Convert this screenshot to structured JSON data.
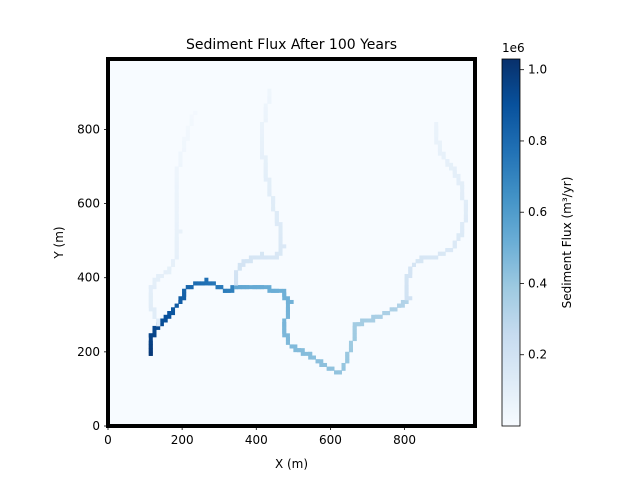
{
  "chart_data": {
    "type": "heatmap",
    "title": "Sediment Flux After 100 Years",
    "xlabel": "X (m)",
    "ylabel": "Y (m)",
    "xlim": [
      0,
      990
    ],
    "ylim": [
      0,
      990
    ],
    "xticks": [
      "0",
      "200",
      "400",
      "600",
      "800"
    ],
    "yticks": [
      "0",
      "200",
      "400",
      "600",
      "800"
    ],
    "colormap": "Blues",
    "colorbar": {
      "label": "Sediment Flux (m³/yr)",
      "offset_text": "1e6",
      "range": [
        0,
        1030000
      ],
      "ticks": [
        "0.2",
        "0.4",
        "0.6",
        "0.8",
        "1.0"
      ],
      "tick_values": [
        0.2,
        0.4,
        0.6,
        0.8,
        1.0
      ]
    },
    "channels": [
      {
        "segment": "main-trunk",
        "points": [
          [
            110,
            190
          ],
          [
            115,
            240
          ],
          [
            135,
            270
          ],
          [
            165,
            300
          ],
          [
            190,
            330
          ],
          [
            205,
            350
          ],
          [
            210,
            370
          ],
          [
            235,
            385
          ],
          [
            260,
            390
          ],
          [
            285,
            380
          ],
          [
            320,
            365
          ],
          [
            345,
            375
          ]
        ],
        "flux_start": 1000000,
        "flux_end": 700000
      },
      {
        "segment": "middle-reach",
        "points": [
          [
            345,
            378
          ],
          [
            390,
            375
          ],
          [
            430,
            370
          ],
          [
            470,
            360
          ],
          [
            490,
            330
          ],
          [
            480,
            290
          ],
          [
            475,
            255
          ],
          [
            490,
            215
          ],
          [
            540,
            195
          ],
          [
            585,
            160
          ],
          [
            625,
            140
          ],
          [
            640,
            170
          ],
          [
            660,
            230
          ],
          [
            665,
            275
          ],
          [
            700,
            285
          ],
          [
            740,
            300
          ],
          [
            780,
            320
          ],
          [
            810,
            340
          ]
        ],
        "flux_start": 550000,
        "flux_end": 320000
      },
      {
        "segment": "east-tributary",
        "points": [
          [
            810,
            340
          ],
          [
            805,
            390
          ],
          [
            820,
            430
          ],
          [
            850,
            455
          ],
          [
            890,
            460
          ],
          [
            930,
            480
          ],
          [
            955,
            520
          ],
          [
            965,
            580
          ],
          [
            955,
            640
          ],
          [
            930,
            690
          ],
          [
            900,
            730
          ],
          [
            885,
            780
          ],
          [
            880,
            820
          ]
        ],
        "flux_start": 200000,
        "flux_end": 60000
      },
      {
        "segment": "north-tributary",
        "points": [
          [
            345,
            380
          ],
          [
            345,
            415
          ],
          [
            370,
            445
          ],
          [
            410,
            460
          ],
          [
            450,
            455
          ],
          [
            470,
            480
          ],
          [
            460,
            540
          ],
          [
            445,
            600
          ],
          [
            430,
            660
          ],
          [
            420,
            720
          ],
          [
            415,
            770
          ],
          [
            420,
            820
          ],
          [
            430,
            870
          ],
          [
            440,
            910
          ]
        ],
        "flux_start": 200000,
        "flux_end": 40000
      },
      {
        "segment": "west-tributary",
        "points": [
          [
            135,
            270
          ],
          [
            125,
            300
          ],
          [
            110,
            330
          ],
          [
            115,
            370
          ],
          [
            135,
            400
          ],
          [
            165,
            420
          ],
          [
            185,
            460
          ],
          [
            190,
            520
          ],
          [
            185,
            580
          ],
          [
            180,
            640
          ],
          [
            190,
            700
          ],
          [
            205,
            760
          ],
          [
            220,
            810
          ],
          [
            235,
            850
          ]
        ],
        "flux_start": 120000,
        "flux_end": 20000
      }
    ]
  }
}
